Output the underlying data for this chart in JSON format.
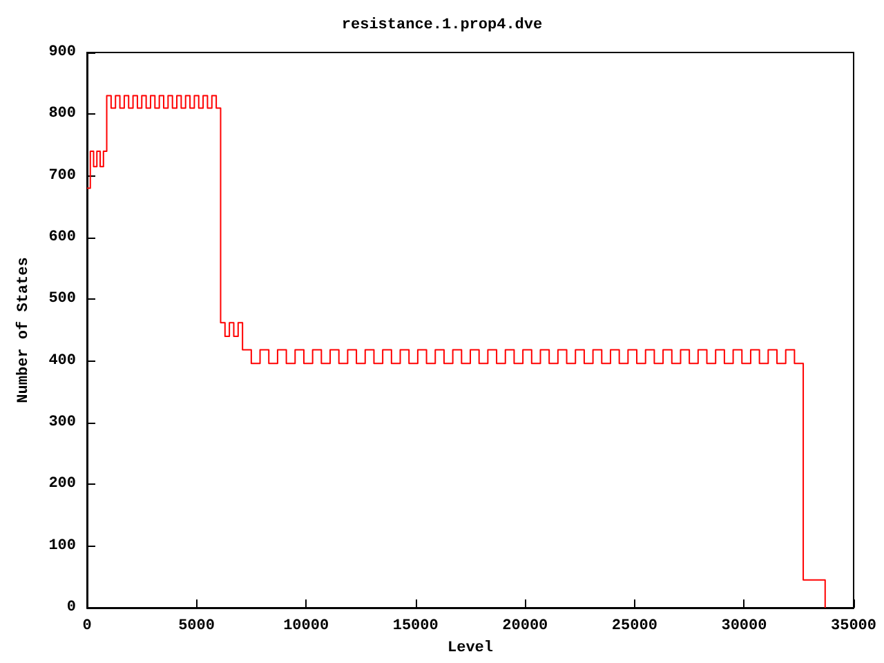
{
  "chart_data": {
    "type": "step",
    "title": "resistance.1.prop4.dve",
    "xlabel": "Level",
    "ylabel": "Number of States",
    "xlim": [
      0,
      35000
    ],
    "xticks": [
      0,
      5000,
      10000,
      15000,
      20000,
      25000,
      30000,
      35000
    ],
    "ylim": [
      0,
      900
    ],
    "yticks": [
      0,
      100,
      200,
      300,
      400,
      500,
      600,
      700,
      800,
      900
    ],
    "marker": "none",
    "line_style": "solid",
    "series": [
      {
        "color": "#ff0000",
        "x": [
          0,
          150,
          300,
          450,
          600,
          750,
          900,
          1100,
          1300,
          1500,
          1700,
          1900,
          2100,
          2300,
          2500,
          2700,
          2900,
          3100,
          3300,
          3500,
          3700,
          3900,
          4100,
          4300,
          4500,
          4700,
          4900,
          5100,
          5300,
          5500,
          5700,
          5900,
          6100,
          6300,
          6500,
          6700,
          6900,
          7100,
          7500,
          7900,
          8300,
          8700,
          9100,
          9500,
          9900,
          10300,
          10700,
          11100,
          11500,
          11900,
          12300,
          12700,
          13100,
          13500,
          13900,
          14300,
          14700,
          15100,
          15500,
          15900,
          16300,
          16700,
          17100,
          17500,
          17900,
          18300,
          18700,
          19100,
          19500,
          19900,
          20300,
          20700,
          21100,
          21500,
          21900,
          22300,
          22700,
          23100,
          23500,
          23900,
          24300,
          24700,
          25100,
          25500,
          25900,
          26300,
          26700,
          27100,
          27500,
          27900,
          28300,
          28700,
          29100,
          29500,
          29900,
          30300,
          30700,
          31100,
          31500,
          31900,
          32300,
          32700,
          33700
        ],
        "values": [
          680,
          740,
          715,
          740,
          715,
          740,
          830,
          810,
          830,
          810,
          830,
          810,
          830,
          810,
          830,
          810,
          830,
          810,
          830,
          810,
          830,
          810,
          830,
          810,
          830,
          810,
          830,
          810,
          830,
          810,
          830,
          810,
          462,
          440,
          462,
          440,
          462,
          418,
          396,
          418,
          396,
          418,
          396,
          418,
          396,
          418,
          396,
          418,
          396,
          418,
          396,
          418,
          396,
          418,
          396,
          418,
          396,
          418,
          396,
          418,
          396,
          418,
          396,
          418,
          396,
          418,
          396,
          418,
          396,
          418,
          396,
          418,
          396,
          418,
          396,
          418,
          396,
          418,
          396,
          418,
          396,
          418,
          396,
          418,
          396,
          418,
          396,
          418,
          396,
          418,
          396,
          418,
          396,
          418,
          396,
          418,
          396,
          418,
          396,
          418,
          396,
          45,
          0
        ]
      }
    ]
  }
}
